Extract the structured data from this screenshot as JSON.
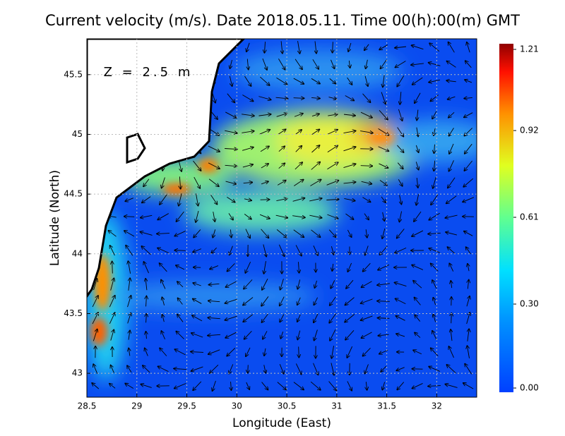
{
  "chart_data": {
    "type": "map",
    "title": "Current velocity (m/s). Date 2018.05.11. Time 00(h):00(m) GMT",
    "xlabel": "Longitude (East)",
    "ylabel": "Latitude (North)",
    "annotation": "Z = 2.5 m",
    "xlim": [
      28.5,
      32.4
    ],
    "ylim": [
      42.8,
      45.8
    ],
    "xticks": [
      28.5,
      29,
      29.5,
      30,
      30.5,
      31,
      31.5,
      32
    ],
    "yticks": [
      43,
      43.5,
      44,
      44.5,
      45,
      45.5
    ],
    "grid": true,
    "colorbar": {
      "lim": [
        0,
        1.21
      ],
      "ticks": [
        {
          "value": 0,
          "label": "0.00"
        },
        {
          "value": 0.3,
          "label": "0.30"
        },
        0.61,
        0.92,
        1.21
      ]
    }
  }
}
